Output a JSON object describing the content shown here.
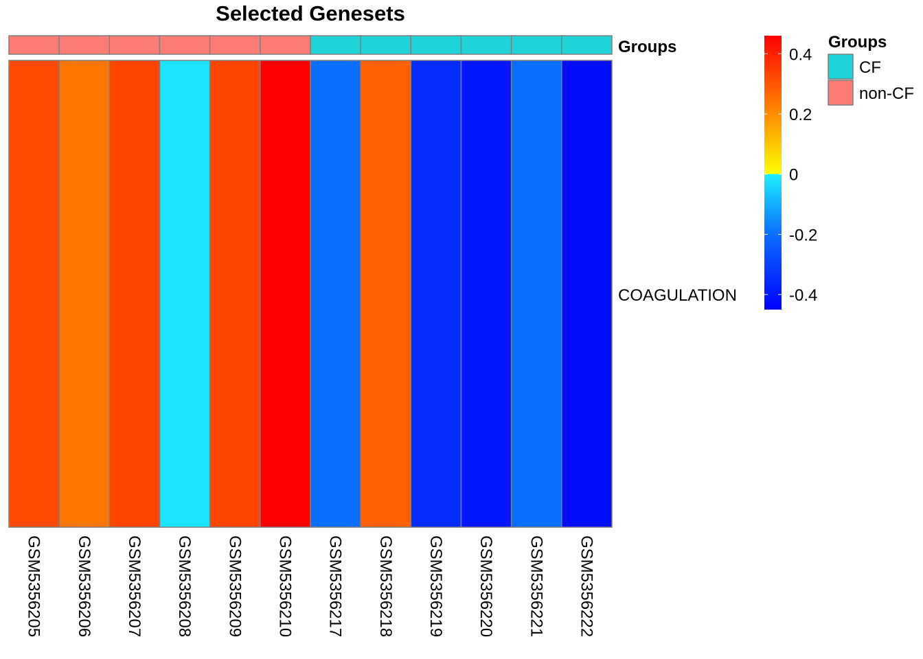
{
  "chart_data": {
    "type": "heatmap",
    "title": "Selected Genesets",
    "rows": [
      "COAGULATION"
    ],
    "columns": [
      "GSM5356205",
      "GSM5356206",
      "GSM5356207",
      "GSM5356208",
      "GSM5356209",
      "GSM5356210",
      "GSM5356217",
      "GSM5356218",
      "GSM5356219",
      "GSM5356220",
      "GSM5356221",
      "GSM5356222"
    ],
    "values": [
      [
        0.32,
        0.24,
        0.33,
        -0.02,
        0.33,
        0.46,
        -0.2,
        0.28,
        -0.35,
        -0.4,
        -0.2,
        -0.42
      ]
    ],
    "column_groups": [
      "non-CF",
      "non-CF",
      "non-CF",
      "non-CF",
      "non-CF",
      "non-CF",
      "CF",
      "CF",
      "CF",
      "CF",
      "CF",
      "CF"
    ],
    "annotation_label": "Groups",
    "colorbar": {
      "ticks": [
        0.4,
        0.2,
        0,
        -0.2,
        -0.4
      ],
      "tick_labels": [
        "0.4",
        "0.2",
        "0",
        "-0.2",
        "-0.4"
      ],
      "range": [
        -0.45,
        0.46
      ],
      "colors": {
        "max": "#ff0000",
        "high": "#ff8c00",
        "mid_pos": "#ffff00",
        "mid_neg": "#1ef0ff",
        "low": "#0a6eff",
        "min": "#0000ff"
      }
    },
    "legend": {
      "title": "Groups",
      "entries": [
        {
          "label": "CF",
          "color": "#1ed4d8"
        },
        {
          "label": "non-CF",
          "color": "#fb7c74"
        }
      ]
    }
  }
}
